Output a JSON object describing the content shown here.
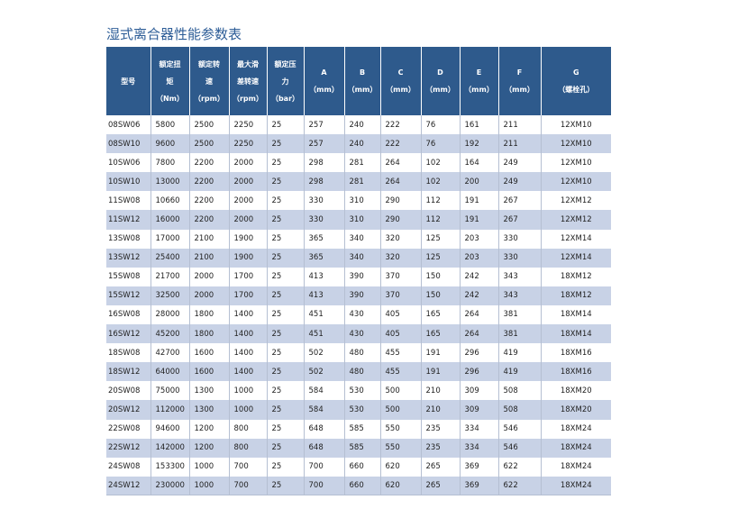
{
  "title": "湿式离合器性能参数表",
  "table": {
    "header": [
      [
        "型号"
      ],
      [
        "额定扭",
        "矩",
        "（Nm）"
      ],
      [
        "额定转",
        "速",
        "（rpm）"
      ],
      [
        "最大滑",
        "差转速",
        "（rpm）"
      ],
      [
        "额定压",
        "力",
        "（bar）"
      ],
      [
        "A",
        "（mm）"
      ],
      [
        "B",
        "（mm）"
      ],
      [
        "C",
        "（mm）"
      ],
      [
        "D",
        "（mm）"
      ],
      [
        "E",
        "（mm）"
      ],
      [
        "F",
        "（mm）"
      ],
      [
        "G",
        "（螺栓孔）"
      ]
    ],
    "rows": [
      [
        "08SW06",
        5800,
        2500,
        2250,
        25,
        257,
        240,
        222,
        76,
        161,
        211,
        "12XM10"
      ],
      [
        "08SW10",
        9600,
        2500,
        2250,
        25,
        257,
        240,
        222,
        76,
        192,
        211,
        "12XM10"
      ],
      [
        "10SW06",
        7800,
        2200,
        2000,
        25,
        298,
        281,
        264,
        102,
        164,
        249,
        "12XM10"
      ],
      [
        "10SW10",
        13000,
        2200,
        2000,
        25,
        298,
        281,
        264,
        102,
        200,
        249,
        "12XM10"
      ],
      [
        "11SW08",
        10660,
        2200,
        2000,
        25,
        330,
        310,
        290,
        112,
        191,
        267,
        "12XM12"
      ],
      [
        "11SW12",
        16000,
        2200,
        2000,
        25,
        330,
        310,
        290,
        112,
        191,
        267,
        "12XM12"
      ],
      [
        "13SW08",
        17000,
        2100,
        1900,
        25,
        365,
        340,
        320,
        125,
        203,
        330,
        "12XM14"
      ],
      [
        "13SW12",
        25400,
        2100,
        1900,
        25,
        365,
        340,
        320,
        125,
        203,
        330,
        "12XM14"
      ],
      [
        "15SW08",
        21700,
        2000,
        1700,
        25,
        413,
        390,
        370,
        150,
        242,
        343,
        "18XM12"
      ],
      [
        "15SW12",
        32500,
        2000,
        1700,
        25,
        413,
        390,
        370,
        150,
        242,
        343,
        "18XM12"
      ],
      [
        "16SW08",
        28000,
        1800,
        1400,
        25,
        451,
        430,
        405,
        165,
        264,
        381,
        "18XM14"
      ],
      [
        "16SW12",
        45200,
        1800,
        1400,
        25,
        451,
        430,
        405,
        165,
        264,
        381,
        "18XM14"
      ],
      [
        "18SW08",
        42700,
        1600,
        1400,
        25,
        502,
        480,
        455,
        191,
        296,
        419,
        "18XM16"
      ],
      [
        "18SW12",
        64000,
        1600,
        1400,
        25,
        502,
        480,
        455,
        191,
        296,
        419,
        "18XM16"
      ],
      [
        "20SW08",
        75000,
        1300,
        1000,
        25,
        584,
        530,
        500,
        210,
        309,
        508,
        "18XM20"
      ],
      [
        "20SW12",
        112000,
        1300,
        1000,
        25,
        584,
        530,
        500,
        210,
        309,
        508,
        "18XM20"
      ],
      [
        "22SW08",
        94600,
        1200,
        800,
        25,
        648,
        585,
        550,
        235,
        334,
        546,
        "18XM24"
      ],
      [
        "22SW12",
        142000,
        1200,
        800,
        25,
        648,
        585,
        550,
        235,
        334,
        546,
        "18XM24"
      ],
      [
        "24SW08",
        153300,
        1000,
        700,
        25,
        700,
        660,
        620,
        265,
        369,
        622,
        "18XM24"
      ],
      [
        "24SW12",
        230000,
        1000,
        700,
        25,
        700,
        660,
        620,
        265,
        369,
        622,
        "18XM24"
      ]
    ]
  }
}
